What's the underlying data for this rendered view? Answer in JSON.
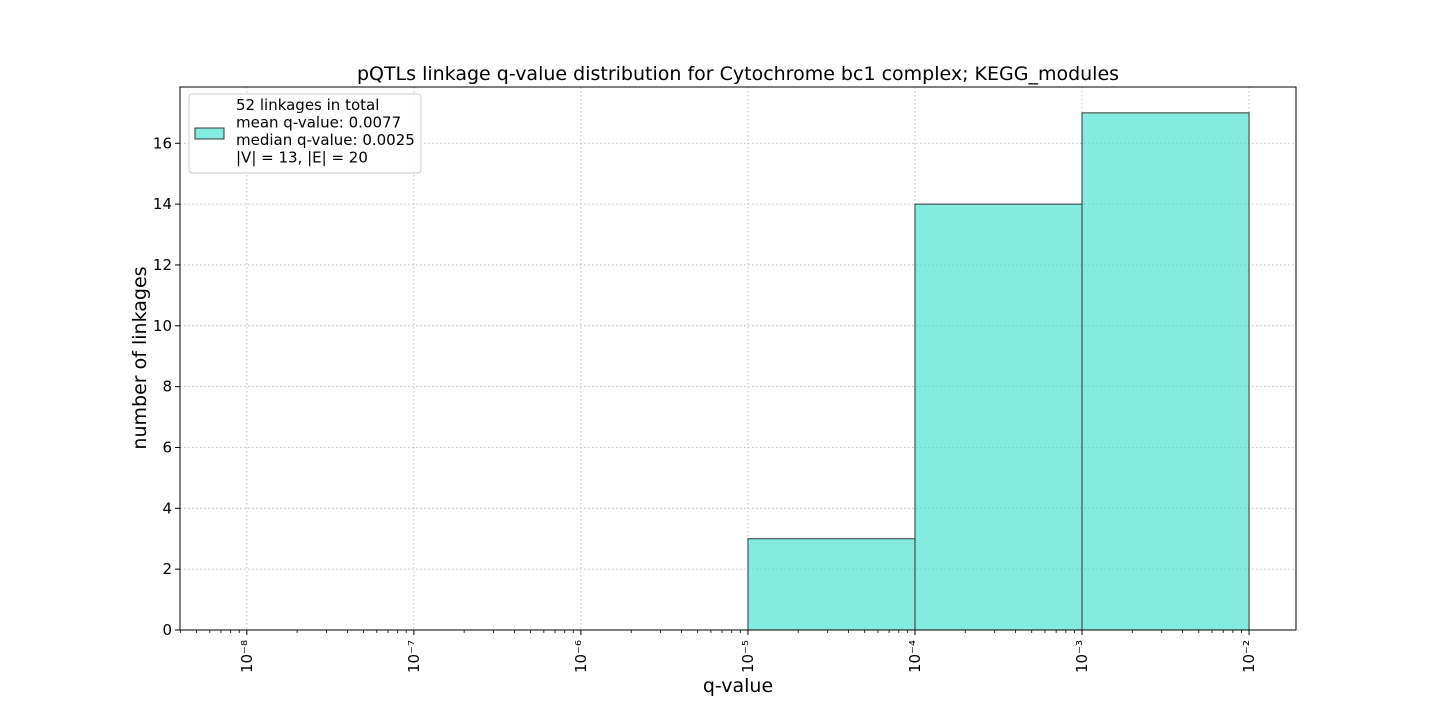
{
  "chart_data": {
    "type": "bar",
    "title": "pQTLs linkage q-value distribution for Cytochrome bc1 complex; KEGG_modules",
    "xlabel": "q-value",
    "ylabel": "number of linkages",
    "x_scale": "log",
    "xlim": [
      3.98e-09,
      0.0191
    ],
    "ylim": [
      0,
      17.85
    ],
    "x_ticks": [
      {
        "value": 1e-08,
        "label": "10⁻⁸"
      },
      {
        "value": 1e-07,
        "label": "10⁻⁷"
      },
      {
        "value": 1e-06,
        "label": "10⁻⁶"
      },
      {
        "value": 1e-05,
        "label": "10⁻⁵"
      },
      {
        "value": 0.0001,
        "label": "10⁻⁴"
      },
      {
        "value": 0.001,
        "label": "10⁻³"
      },
      {
        "value": 0.01,
        "label": "10⁻²"
      }
    ],
    "y_ticks": [
      0,
      2,
      4,
      6,
      8,
      10,
      12,
      14,
      16
    ],
    "bins": [
      {
        "x0": 1e-08,
        "x1": 1e-07,
        "count": 0
      },
      {
        "x0": 1e-07,
        "x1": 1e-06,
        "count": 0
      },
      {
        "x0": 1e-06,
        "x1": 1e-05,
        "count": 0
      },
      {
        "x0": 1e-05,
        "x1": 0.0001,
        "count": 3
      },
      {
        "x0": 0.0001,
        "x1": 0.001,
        "count": 14
      },
      {
        "x0": 0.001,
        "x1": 0.01,
        "count": 17
      }
    ],
    "grid": true,
    "bar_color": "#40E0D0",
    "legend": {
      "position": "upper-left",
      "lines": [
        "52 linkages in total",
        "mean q-value: 0.0077",
        "median q-value: 0.0025",
        "|V| = 13, |E| = 20"
      ]
    }
  }
}
